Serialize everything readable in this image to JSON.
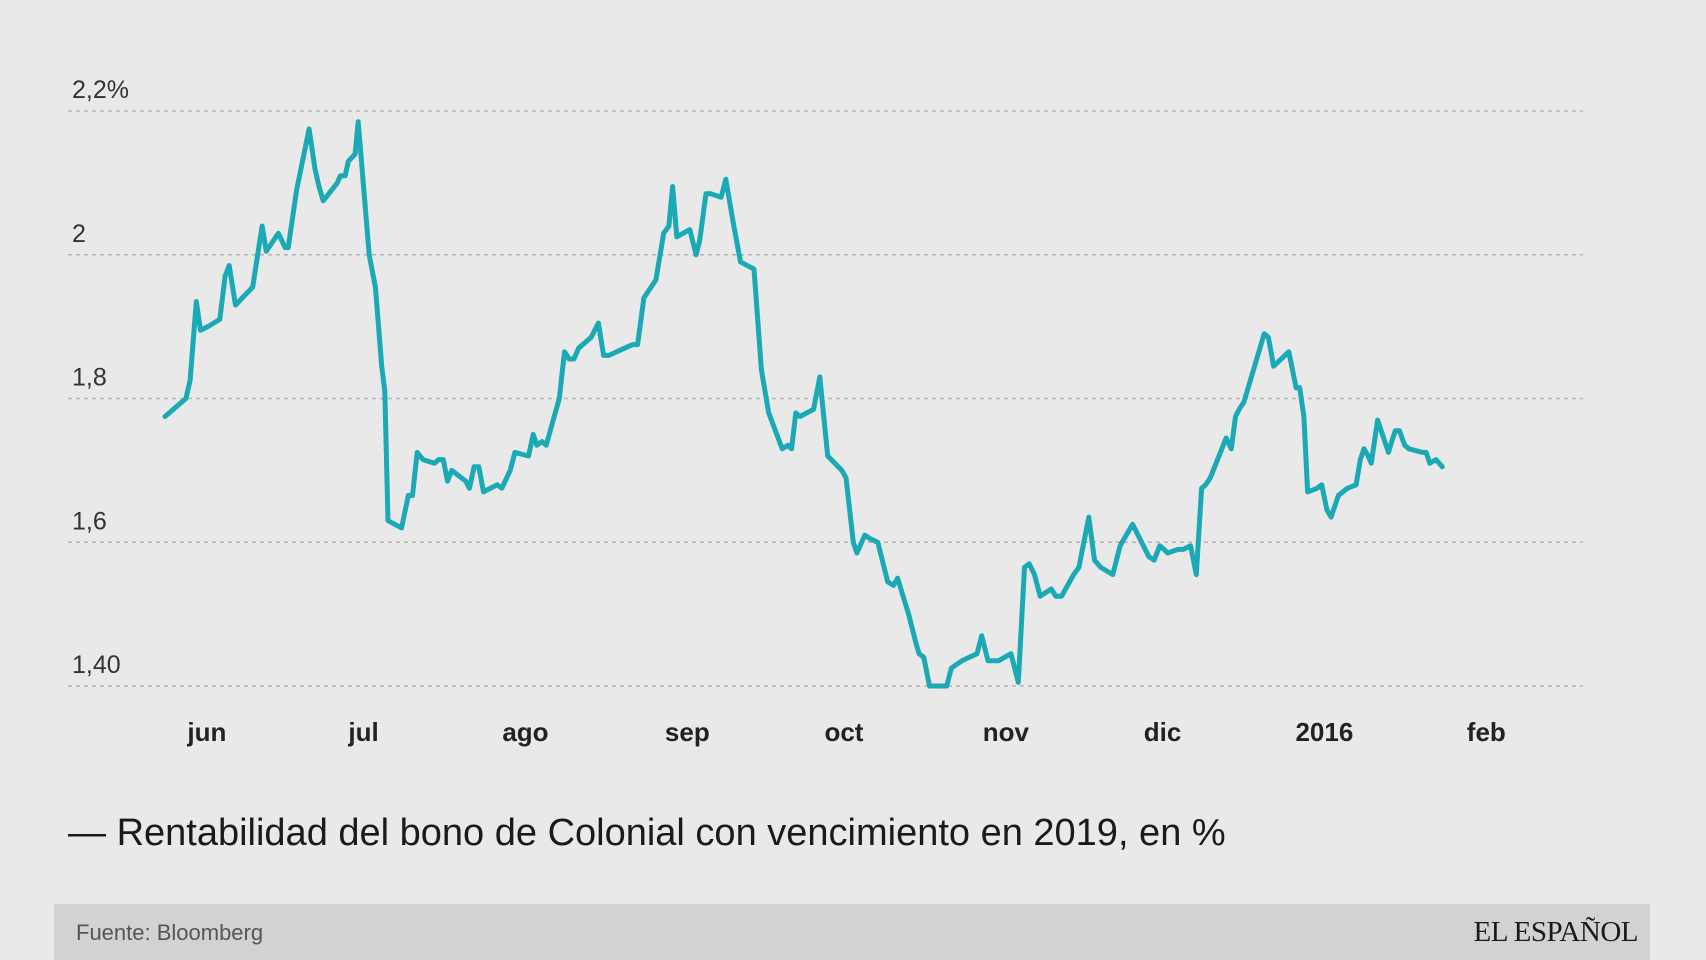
{
  "chart_data": {
    "type": "line",
    "title": "Rentabilidad del bono de Colonial con vencimiento en 2019, en %",
    "legend_marker": "—",
    "xlabel": "",
    "ylabel": "",
    "ylim": [
      1.4,
      2.2
    ],
    "grid": true,
    "line_color": "#1ba9b5",
    "y_ticks": [
      {
        "value": 2.2,
        "label": "2,2%"
      },
      {
        "value": 2.0,
        "label": "2"
      },
      {
        "value": 1.8,
        "label": "1,8"
      },
      {
        "value": 1.6,
        "label": "1,6"
      },
      {
        "value": 1.4,
        "label": "1,40"
      }
    ],
    "x_ticks": [
      {
        "day": 0,
        "label": "jun"
      },
      {
        "day": 30,
        "label": "jul"
      },
      {
        "day": 61,
        "label": "ago"
      },
      {
        "day": 92,
        "label": "sep"
      },
      {
        "day": 122,
        "label": "oct"
      },
      {
        "day": 153,
        "label": "nov"
      },
      {
        "day": 183,
        "label": "dic"
      },
      {
        "day": 214,
        "label": "2016"
      },
      {
        "day": 245,
        "label": "feb"
      }
    ],
    "x_range": [
      -4,
      268.5
    ],
    "series": [
      {
        "name": "Rentabilidad del bono de Colonial con vencimiento en 2019, en %",
        "points": [
          [
            -4,
            1.775
          ],
          [
            0,
            1.8
          ],
          [
            0.8,
            1.825
          ],
          [
            2,
            1.935
          ],
          [
            2.8,
            1.895
          ],
          [
            4.2,
            1.9
          ],
          [
            6.5,
            1.91
          ],
          [
            7.5,
            1.97
          ],
          [
            8.3,
            1.985
          ],
          [
            9.5,
            1.93
          ],
          [
            10.8,
            1.94
          ],
          [
            12.8,
            1.955
          ],
          [
            14.6,
            2.04
          ],
          [
            15.4,
            2.005
          ],
          [
            16.8,
            2.02
          ],
          [
            17.7,
            2.03
          ],
          [
            19.0,
            2.01
          ],
          [
            19.6,
            2.01
          ],
          [
            21.2,
            2.09
          ],
          [
            23.6,
            2.175
          ],
          [
            24.7,
            2.12
          ],
          [
            25.5,
            2.095
          ],
          [
            26.3,
            2.075
          ],
          [
            29.0,
            2.1
          ],
          [
            29.6,
            2.11
          ],
          [
            30.5,
            2.11
          ],
          [
            31.1,
            2.13
          ],
          [
            32.4,
            2.14
          ],
          [
            33.0,
            2.185
          ],
          [
            35.1,
            2.0
          ],
          [
            36.3,
            1.955
          ],
          [
            37.5,
            1.845
          ],
          [
            38.1,
            1.81
          ],
          [
            38.7,
            1.63
          ],
          [
            41.3,
            1.62
          ],
          [
            42.6,
            1.665
          ],
          [
            43.4,
            1.665
          ],
          [
            44.3,
            1.725
          ],
          [
            45.4,
            1.715
          ],
          [
            47.6,
            1.71
          ],
          [
            48.4,
            1.715
          ],
          [
            49.3,
            1.715
          ],
          [
            50.1,
            1.685
          ],
          [
            50.9,
            1.7
          ],
          [
            53.6,
            1.685
          ],
          [
            54.3,
            1.675
          ],
          [
            55.2,
            1.705
          ],
          [
            56.1,
            1.705
          ],
          [
            57.0,
            1.67
          ],
          [
            59.6,
            1.68
          ],
          [
            60.5,
            1.675
          ],
          [
            62.1,
            1.7
          ],
          [
            63.0,
            1.725
          ],
          [
            65.6,
            1.72
          ],
          [
            66.5,
            1.75
          ],
          [
            67.2,
            1.735
          ],
          [
            68.2,
            1.74
          ],
          [
            69.0,
            1.735
          ],
          [
            71.5,
            1.8
          ],
          [
            72.5,
            1.865
          ],
          [
            73.4,
            1.855
          ],
          [
            74.3,
            1.855
          ],
          [
            75.2,
            1.87
          ],
          [
            77.6,
            1.885
          ],
          [
            79.0,
            1.905
          ],
          [
            80.0,
            1.86
          ],
          [
            81.0,
            1.86
          ],
          [
            84.0,
            1.87
          ],
          [
            85.6,
            1.875
          ],
          [
            86.5,
            1.875
          ],
          [
            87.7,
            1.94
          ],
          [
            90.0,
            1.965
          ],
          [
            91.5,
            2.03
          ],
          [
            92.5,
            2.04
          ],
          [
            93.2,
            2.095
          ],
          [
            94.0,
            2.025
          ],
          [
            96.5,
            2.035
          ],
          [
            97.7,
            2.0
          ],
          [
            98.4,
            2.02
          ],
          [
            99.6,
            2.085
          ],
          [
            100.5,
            2.085
          ],
          [
            102.5,
            2.08
          ],
          [
            103.4,
            2.105
          ],
          [
            104.8,
            2.045
          ],
          [
            106.2,
            1.99
          ],
          [
            108.8,
            1.98
          ],
          [
            110.2,
            1.84
          ],
          [
            111.6,
            1.78
          ],
          [
            114.2,
            1.73
          ],
          [
            115.3,
            1.735
          ],
          [
            116.0,
            1.73
          ],
          [
            116.8,
            1.78
          ],
          [
            117.6,
            1.775
          ],
          [
            120.2,
            1.785
          ],
          [
            121.4,
            1.83
          ],
          [
            122.9,
            1.72
          ],
          [
            125.6,
            1.7
          ],
          [
            126.4,
            1.69
          ],
          [
            127.8,
            1.6
          ],
          [
            128.5,
            1.585
          ],
          [
            130.0,
            1.61
          ],
          [
            131.0,
            1.605
          ],
          [
            132.5,
            1.6
          ],
          [
            133.7,
            1.565
          ],
          [
            134.4,
            1.545
          ],
          [
            135.5,
            1.54
          ],
          [
            136.3,
            1.55
          ],
          [
            138.4,
            1.5
          ],
          [
            139.8,
            1.46
          ],
          [
            140.4,
            1.445
          ],
          [
            141.3,
            1.44
          ],
          [
            142.4,
            1.4
          ],
          [
            144.6,
            1.4
          ],
          [
            145.7,
            1.4
          ],
          [
            146.6,
            1.425
          ],
          [
            148.6,
            1.435
          ],
          [
            151.5,
            1.445
          ],
          [
            152.4,
            1.47
          ],
          [
            153.6,
            1.435
          ],
          [
            155.6,
            1.435
          ],
          [
            158.0,
            1.445
          ],
          [
            159.4,
            1.405
          ],
          [
            160.6,
            1.565
          ],
          [
            161.5,
            1.57
          ],
          [
            162.5,
            1.555
          ],
          [
            163.6,
            1.525
          ],
          [
            165.7,
            1.535
          ],
          [
            166.6,
            1.525
          ],
          [
            167.7,
            1.525
          ],
          [
            170.0,
            1.555
          ],
          [
            171.0,
            1.565
          ],
          [
            172.9,
            1.635
          ],
          [
            174.0,
            1.575
          ],
          [
            175.2,
            1.565
          ],
          [
            177.5,
            1.555
          ],
          [
            178.9,
            1.595
          ],
          [
            181.3,
            1.625
          ],
          [
            184.4,
            1.58
          ],
          [
            185.4,
            1.575
          ],
          [
            186.5,
            1.595
          ],
          [
            187.3,
            1.59
          ],
          [
            188.0,
            1.585
          ],
          [
            190.0,
            1.59
          ],
          [
            191.0,
            1.59
          ],
          [
            192.4,
            1.595
          ],
          [
            193.5,
            1.555
          ],
          [
            194.5,
            1.675
          ],
          [
            195.3,
            1.68
          ],
          [
            196.2,
            1.69
          ],
          [
            198.1,
            1.725
          ],
          [
            199.2,
            1.745
          ],
          [
            200.2,
            1.73
          ],
          [
            201.0,
            1.775
          ],
          [
            201.7,
            1.785
          ],
          [
            202.6,
            1.795
          ],
          [
            206.5,
            1.89
          ],
          [
            207.3,
            1.885
          ],
          [
            208.3,
            1.845
          ],
          [
            211.2,
            1.865
          ],
          [
            212.6,
            1.815
          ],
          [
            213.3,
            1.815
          ],
          [
            214.1,
            1.775
          ],
          [
            214.8,
            1.67
          ],
          [
            216.6,
            1.675
          ],
          [
            217.5,
            1.68
          ],
          [
            218.5,
            1.645
          ],
          [
            219.3,
            1.635
          ],
          [
            220.7,
            1.665
          ],
          [
            222.4,
            1.675
          ],
          [
            224.1,
            1.68
          ],
          [
            224.9,
            1.715
          ],
          [
            225.6,
            1.73
          ],
          [
            226.4,
            1.72
          ],
          [
            227.0,
            1.71
          ],
          [
            228.2,
            1.77
          ],
          [
            230.3,
            1.725
          ],
          [
            230.9,
            1.74
          ],
          [
            231.6,
            1.755
          ],
          [
            232.4,
            1.755
          ],
          [
            233.4,
            1.735
          ],
          [
            234.2,
            1.73
          ],
          [
            236.8,
            1.725
          ],
          [
            237.5,
            1.725
          ],
          [
            238.2,
            1.71
          ],
          [
            239.4,
            1.715
          ],
          [
            240.6,
            1.705
          ]
        ]
      }
    ]
  },
  "footer": {
    "source": "Fuente: Bloomberg",
    "brand": "EL ESPAÑOL"
  }
}
